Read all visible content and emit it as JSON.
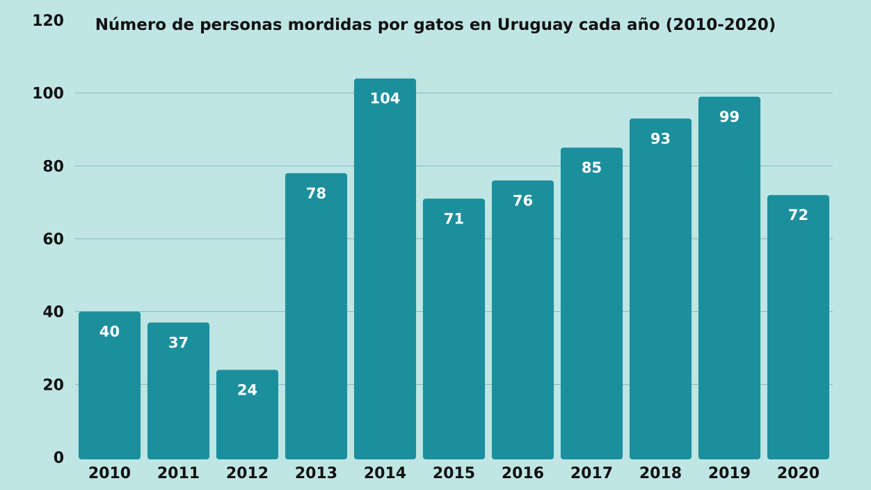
{
  "chart_data": {
    "type": "bar",
    "title": "Número de personas mordidas por gatos en Uruguay cada año (2010-2020)",
    "xlabel": "",
    "ylabel": "",
    "categories": [
      "2010",
      "2011",
      "2012",
      "2013",
      "2014",
      "2015",
      "2016",
      "2017",
      "2018",
      "2019",
      "2020"
    ],
    "values": [
      40,
      37,
      24,
      78,
      104,
      71,
      76,
      85,
      93,
      99,
      72
    ],
    "data_labels": [
      "40",
      "37",
      "24",
      "78",
      "104",
      "71",
      "76",
      "85",
      "93",
      "99",
      "72"
    ],
    "ylim": [
      0,
      120
    ],
    "yticks": [
      0,
      20,
      40,
      60,
      80,
      100,
      120
    ],
    "ytick_labels": [
      "0",
      "20",
      "40",
      "60",
      "80",
      "100",
      "120"
    ],
    "grid": true,
    "legend": "none",
    "colors": {
      "background": "#bfe6e4",
      "bar": "#1c8f9d",
      "gridline": "#7fb8b8",
      "text": "#111111",
      "data_label": "#ffffff"
    }
  }
}
